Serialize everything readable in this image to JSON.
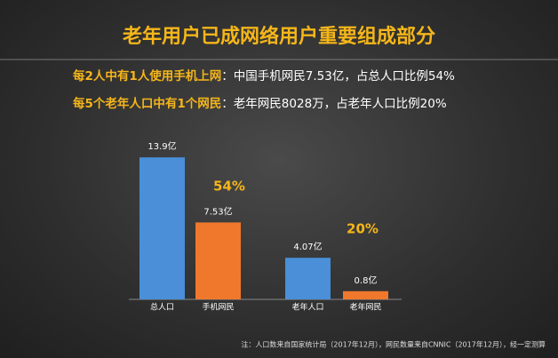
{
  "chart_data": {
    "type": "bar",
    "title": "老年用户已成网络用户重要组成部分",
    "notes": [
      {
        "highlight": "每2人中有1人使用手机上网",
        "text": "：中国手机网民7.53亿，占总人口比例54%"
      },
      {
        "highlight": "每5个老年人口中有1个网民",
        "text": "：老年网民8028万，占老年人口比例20%"
      }
    ],
    "categories": [
      "总人口",
      "手机网民",
      "老年人口",
      "老年网民"
    ],
    "values": [
      13.9,
      7.53,
      4.07,
      0.8
    ],
    "value_labels": [
      "13.9亿",
      "7.53亿",
      "4.07亿",
      "0.8亿"
    ],
    "colors": [
      "#4a8fd8",
      "#f0782c",
      "#4a8fd8",
      "#f0782c"
    ],
    "annotations": [
      "54%",
      "20%"
    ],
    "footnote": "注：人口数来自国家统计局（2017年12月），网民数量来自CNNIC（2017年12月），经一定测算"
  }
}
